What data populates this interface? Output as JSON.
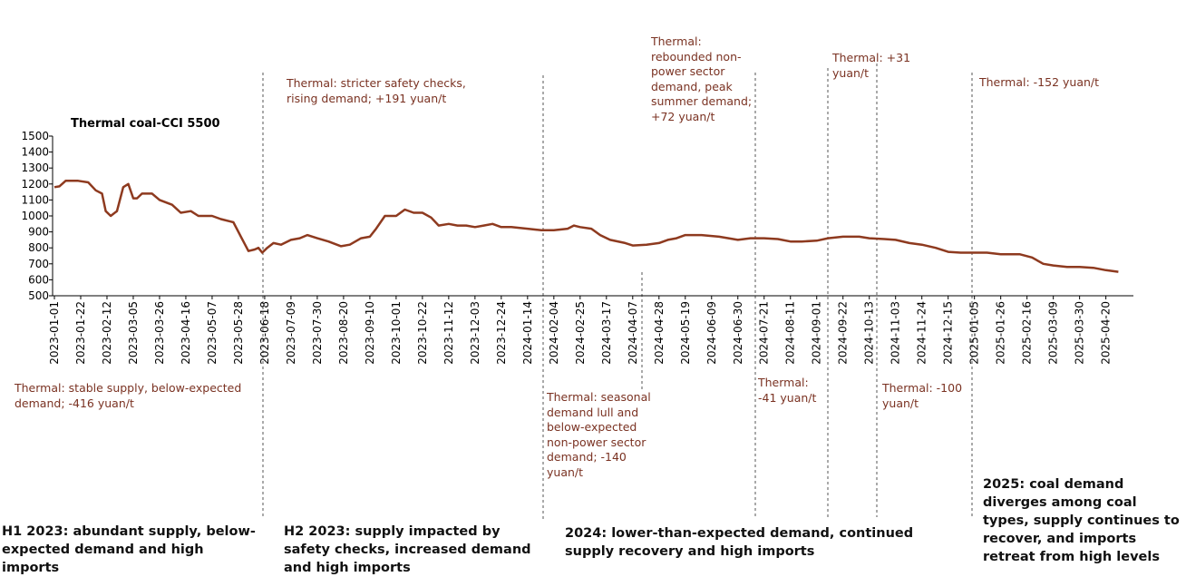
{
  "chart_data": {
    "type": "line",
    "series": [
      {
        "name": "Thermal coal-CCI 5500",
        "color": "#8e3a1f",
        "x": [
          "2023-01-01",
          "2023-01-05",
          "2023-01-10",
          "2023-01-20",
          "2023-01-28",
          "2023-02-03",
          "2023-02-08",
          "2023-02-11",
          "2023-02-15",
          "2023-02-20",
          "2023-02-25",
          "2023-03-01",
          "2023-03-05",
          "2023-03-08",
          "2023-03-12",
          "2023-03-20",
          "2023-03-26",
          "2023-04-05",
          "2023-04-12",
          "2023-04-20",
          "2023-04-26",
          "2023-05-07",
          "2023-05-14",
          "2023-05-24",
          "2023-05-30",
          "2023-06-05",
          "2023-06-10",
          "2023-06-13",
          "2023-06-16",
          "2023-06-20",
          "2023-06-25",
          "2023-07-01",
          "2023-07-09",
          "2023-07-16",
          "2023-07-22",
          "2023-07-30",
          "2023-08-08",
          "2023-08-18",
          "2023-08-25",
          "2023-09-03",
          "2023-09-10",
          "2023-09-15",
          "2023-09-22",
          "2023-10-01",
          "2023-10-08",
          "2023-10-15",
          "2023-10-22",
          "2023-10-29",
          "2023-11-04",
          "2023-11-12",
          "2023-11-19",
          "2023-11-26",
          "2023-12-03",
          "2023-12-10",
          "2023-12-17",
          "2023-12-24",
          "2024-01-01",
          "2024-01-14",
          "2024-01-25",
          "2024-02-04",
          "2024-02-15",
          "2024-02-20",
          "2024-02-25",
          "2024-03-05",
          "2024-03-12",
          "2024-03-20",
          "2024-04-01",
          "2024-04-07",
          "2024-04-18",
          "2024-04-28",
          "2024-05-05",
          "2024-05-12",
          "2024-05-19",
          "2024-06-01",
          "2024-06-15",
          "2024-06-30",
          "2024-07-10",
          "2024-07-21",
          "2024-08-01",
          "2024-08-11",
          "2024-08-20",
          "2024-09-01",
          "2024-09-10",
          "2024-09-22",
          "2024-10-05",
          "2024-10-13",
          "2024-10-25",
          "2024-11-03",
          "2024-11-14",
          "2024-11-24",
          "2024-12-05",
          "2024-12-15",
          "2024-12-25",
          "2025-01-05",
          "2025-01-15",
          "2025-01-26",
          "2025-02-10",
          "2025-02-20",
          "2025-03-01",
          "2025-03-09",
          "2025-03-20",
          "2025-03-30",
          "2025-04-10",
          "2025-04-20",
          "2025-04-30"
        ],
        "values": [
          1180,
          1185,
          1220,
          1220,
          1210,
          1160,
          1140,
          1030,
          1000,
          1030,
          1180,
          1200,
          1110,
          1110,
          1140,
          1140,
          1100,
          1070,
          1020,
          1030,
          1000,
          1000,
          980,
          960,
          870,
          780,
          790,
          800,
          770,
          800,
          830,
          820,
          850,
          860,
          880,
          860,
          840,
          810,
          820,
          860,
          870,
          920,
          1000,
          1000,
          1040,
          1020,
          1020,
          990,
          940,
          950,
          940,
          940,
          930,
          940,
          950,
          930,
          930,
          920,
          910,
          910,
          920,
          940,
          930,
          920,
          880,
          850,
          830,
          815,
          820,
          830,
          850,
          860,
          880,
          880,
          870,
          850,
          860,
          860,
          855,
          840,
          840,
          845,
          860,
          870,
          870,
          860,
          855,
          850,
          830,
          820,
          800,
          775,
          770,
          770,
          770,
          760,
          760,
          740,
          700,
          690,
          680,
          680,
          675,
          660,
          650
        ]
      }
    ],
    "xlim": [
      "2023-01-01",
      "2025-05-12"
    ],
    "xticks": [
      "2023-01-01",
      "2023-01-22",
      "2023-02-12",
      "2023-03-05",
      "2023-03-26",
      "2023-04-16",
      "2023-05-07",
      "2023-05-28",
      "2023-06-18",
      "2023-07-09",
      "2023-07-30",
      "2023-08-20",
      "2023-09-10",
      "2023-10-01",
      "2023-10-22",
      "2023-11-12",
      "2023-12-03",
      "2023-12-24",
      "2024-01-14",
      "2024-02-04",
      "2024-02-25",
      "2024-03-17",
      "2024-04-07",
      "2024-04-28",
      "2024-05-19",
      "2024-06-09",
      "2024-06-30",
      "2024-07-21",
      "2024-08-11",
      "2024-09-01",
      "2024-09-22",
      "2024-10-13",
      "2024-11-03",
      "2024-11-24",
      "2024-12-15",
      "2025-01-05",
      "2025-01-26",
      "2025-02-16",
      "2025-03-09",
      "2025-03-30",
      "2025-04-20"
    ],
    "ylim": [
      500,
      1500
    ],
    "yticks": [
      500,
      600,
      700,
      800,
      900,
      1000,
      1100,
      1200,
      1300,
      1400,
      1500
    ],
    "annotations": [
      "Thermal: stable supply, below-expected demand; -416 yuan/t",
      "Thermal: stricter safety checks, rising demand; +191 yuan/t",
      "Thermal: seasonal demand lull and below-expected non-power sector demand; -140 yuan/t",
      "Thermal: rebounded non-power sector demand, peak summer demand; +72 yuan/t",
      "Thermal: -41 yuan/t",
      "Thermal: +31 yuan/t",
      "Thermal: -100 yuan/t",
      "Thermal: -152 yuan/t"
    ],
    "periods": [
      "H1 2023: abundant supply, below-expected demand and high imports",
      "H2 2023: supply impacted by safety checks, increased demand and high imports",
      "2024: lower-than-expected demand, continued supply recovery and high imports",
      "2025: coal demand diverges among coal types, supply continues to recover, and imports retreat from high levels"
    ]
  }
}
